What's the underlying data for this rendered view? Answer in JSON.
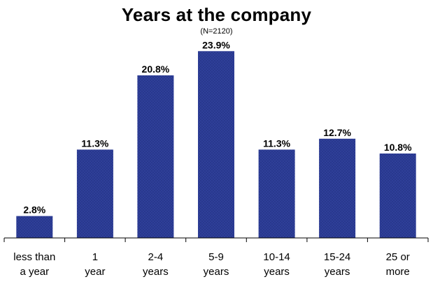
{
  "chart_data": {
    "type": "bar",
    "title": "Years at the company",
    "subtitle": "(N=2120)",
    "categories": [
      [
        "less than",
        "a year"
      ],
      [
        "1",
        "year"
      ],
      [
        "2-4",
        "years"
      ],
      [
        "5-9",
        "years"
      ],
      [
        "10-14",
        "years"
      ],
      [
        "15-24",
        "years"
      ],
      [
        "25 or",
        "more"
      ]
    ],
    "values": [
      2.8,
      11.3,
      20.8,
      23.9,
      11.3,
      12.7,
      10.8
    ],
    "data_labels": [
      "2.8%",
      "11.3%",
      "20.8%",
      "23.9%",
      "11.3%",
      "12.7%",
      "10.8%"
    ],
    "ylim": [
      0,
      25
    ],
    "grid": false,
    "legend": "none",
    "xlabel": "",
    "ylabel": ""
  },
  "colors": {
    "bar_fill": "#2f3f99",
    "bar_dots": "#0d1a5e",
    "axis": "#000000"
  }
}
